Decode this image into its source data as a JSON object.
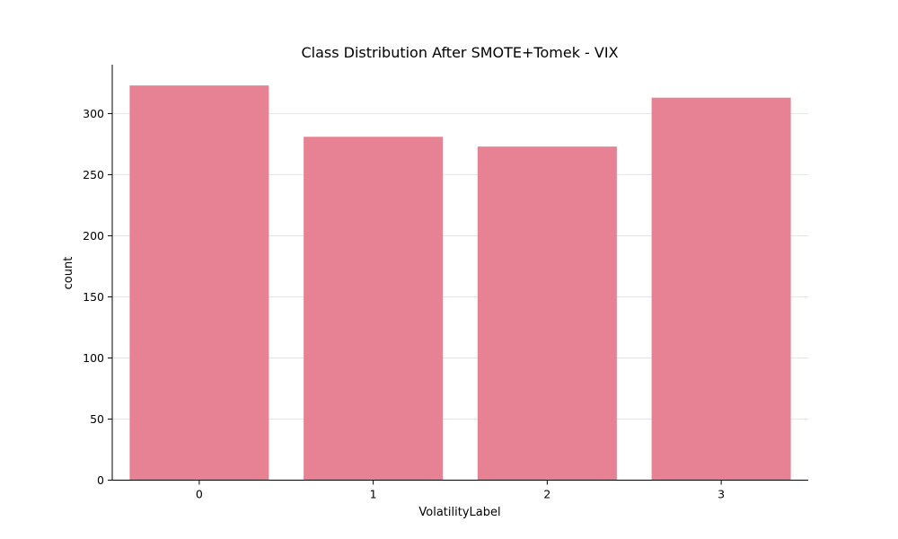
{
  "chart_data": {
    "type": "bar",
    "title": "Class Distribution After SMOTE+Tomek - VIX",
    "xlabel": "VolatilityLabel",
    "ylabel": "count",
    "categories": [
      "0",
      "1",
      "2",
      "3"
    ],
    "values": [
      323,
      281,
      273,
      313
    ],
    "ylim": [
      0,
      340
    ],
    "yticks": [
      0,
      50,
      100,
      150,
      200,
      250,
      300
    ],
    "grid": "horizontal",
    "legend": "none",
    "bar_color": "#e78294"
  }
}
